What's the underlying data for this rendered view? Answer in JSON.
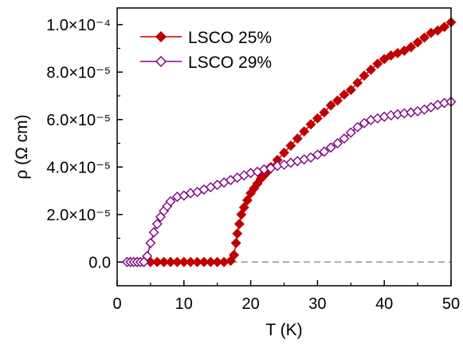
{
  "chart_data": {
    "type": "line",
    "xlabel": "T (K)",
    "ylabel": "ρ (Ω cm)",
    "xlim": [
      0,
      50
    ],
    "ylim": [
      -1e-05,
      0.000107
    ],
    "x_ticks": [
      {
        "value": 0,
        "label": "0"
      },
      {
        "value": 10,
        "label": "10"
      },
      {
        "value": 20,
        "label": "20"
      },
      {
        "value": 30,
        "label": "30"
      },
      {
        "value": 40,
        "label": "40"
      },
      {
        "value": 50,
        "label": "50"
      }
    ],
    "y_ticks": [
      {
        "value": 0,
        "label": "0.0"
      },
      {
        "value": 2e-05,
        "label": "2.0×10⁻⁵"
      },
      {
        "value": 4e-05,
        "label": "4.0×10⁻⁵"
      },
      {
        "value": 6e-05,
        "label": "6.0×10⁻⁵"
      },
      {
        "value": 8e-05,
        "label": "8.0×10⁻⁵"
      },
      {
        "value": 0.0001,
        "label": "1.0×10⁻⁴"
      }
    ],
    "zero_line": {
      "style": "dashed",
      "color": "#808080",
      "value": 0
    },
    "legend_position": "top-left",
    "series": [
      {
        "name": "LSCO 25%",
        "color": "#c00000",
        "marker": "filled-diamond",
        "x": [
          2,
          3,
          4,
          5,
          6,
          7,
          8,
          9,
          10,
          11,
          12,
          13,
          14,
          15,
          16,
          17,
          17.5,
          17.8,
          18,
          18.3,
          18.6,
          19,
          19.5,
          20,
          20.5,
          21,
          21.5,
          22,
          22.5,
          23,
          24,
          25,
          26,
          27,
          28,
          29,
          30,
          31,
          32,
          33,
          34,
          35,
          36,
          37,
          38,
          39,
          40,
          41,
          42,
          43,
          44,
          45,
          46,
          47,
          48,
          49,
          50
        ],
        "y": [
          0,
          0,
          0,
          0,
          0,
          0,
          0,
          0,
          0,
          0,
          0,
          0,
          0,
          0,
          0,
          5e-07,
          3e-06,
          8e-06,
          1.2e-05,
          1.6e-05,
          2e-05,
          2.3e-05,
          2.6e-05,
          2.9e-05,
          3.1e-05,
          3.3e-05,
          3.5e-05,
          3.65e-05,
          3.8e-05,
          4e-05,
          4.3e-05,
          4.6e-05,
          4.9e-05,
          5.2e-05,
          5.5e-05,
          5.8e-05,
          6.05e-05,
          6.3e-05,
          6.6e-05,
          6.8e-05,
          7.05e-05,
          7.25e-05,
          7.55e-05,
          7.85e-05,
          8.1e-05,
          8.35e-05,
          8.55e-05,
          8.7e-05,
          8.8e-05,
          8.9e-05,
          9.05e-05,
          9.25e-05,
          9.45e-05,
          9.65e-05,
          9.75e-05,
          9.9e-05,
          0.000101
        ]
      },
      {
        "name": "LSCO 29%",
        "color": "#800080",
        "marker": "open-diamond",
        "x": [
          1.5,
          2,
          2.5,
          3,
          3.5,
          4,
          4.5,
          5,
          5.5,
          6,
          6.5,
          7,
          7.5,
          8,
          9,
          10,
          11,
          12,
          13,
          14,
          15,
          16,
          17,
          18,
          19,
          20,
          21,
          22,
          23,
          24,
          25,
          26,
          27,
          28,
          29,
          30,
          31,
          32,
          33,
          34,
          35,
          36,
          37,
          38,
          39,
          40,
          41,
          42,
          43,
          44,
          45,
          46,
          47,
          48,
          49,
          50
        ],
        "y": [
          0,
          0,
          0,
          0,
          0,
          0,
          2.5e-06,
          8e-06,
          1.25e-05,
          1.6e-05,
          1.9e-05,
          2.15e-05,
          2.35e-05,
          2.55e-05,
          2.75e-05,
          2.8e-05,
          2.9e-05,
          2.95e-05,
          3.05e-05,
          3.15e-05,
          3.25e-05,
          3.35e-05,
          3.45e-05,
          3.55e-05,
          3.65e-05,
          3.75e-05,
          3.8e-05,
          3.9e-05,
          3.95e-05,
          4.05e-05,
          4.1e-05,
          4.18e-05,
          4.25e-05,
          4.32e-05,
          4.4e-05,
          4.52e-05,
          4.65e-05,
          4.82e-05,
          5e-05,
          5.2e-05,
          5.45e-05,
          5.68e-05,
          5.85e-05,
          5.98e-05,
          6.05e-05,
          6.12e-05,
          6.18e-05,
          6.22e-05,
          6.26e-05,
          6.3e-05,
          6.35e-05,
          6.42e-05,
          6.52e-05,
          6.62e-05,
          6.7e-05,
          6.75e-05
        ]
      }
    ]
  }
}
